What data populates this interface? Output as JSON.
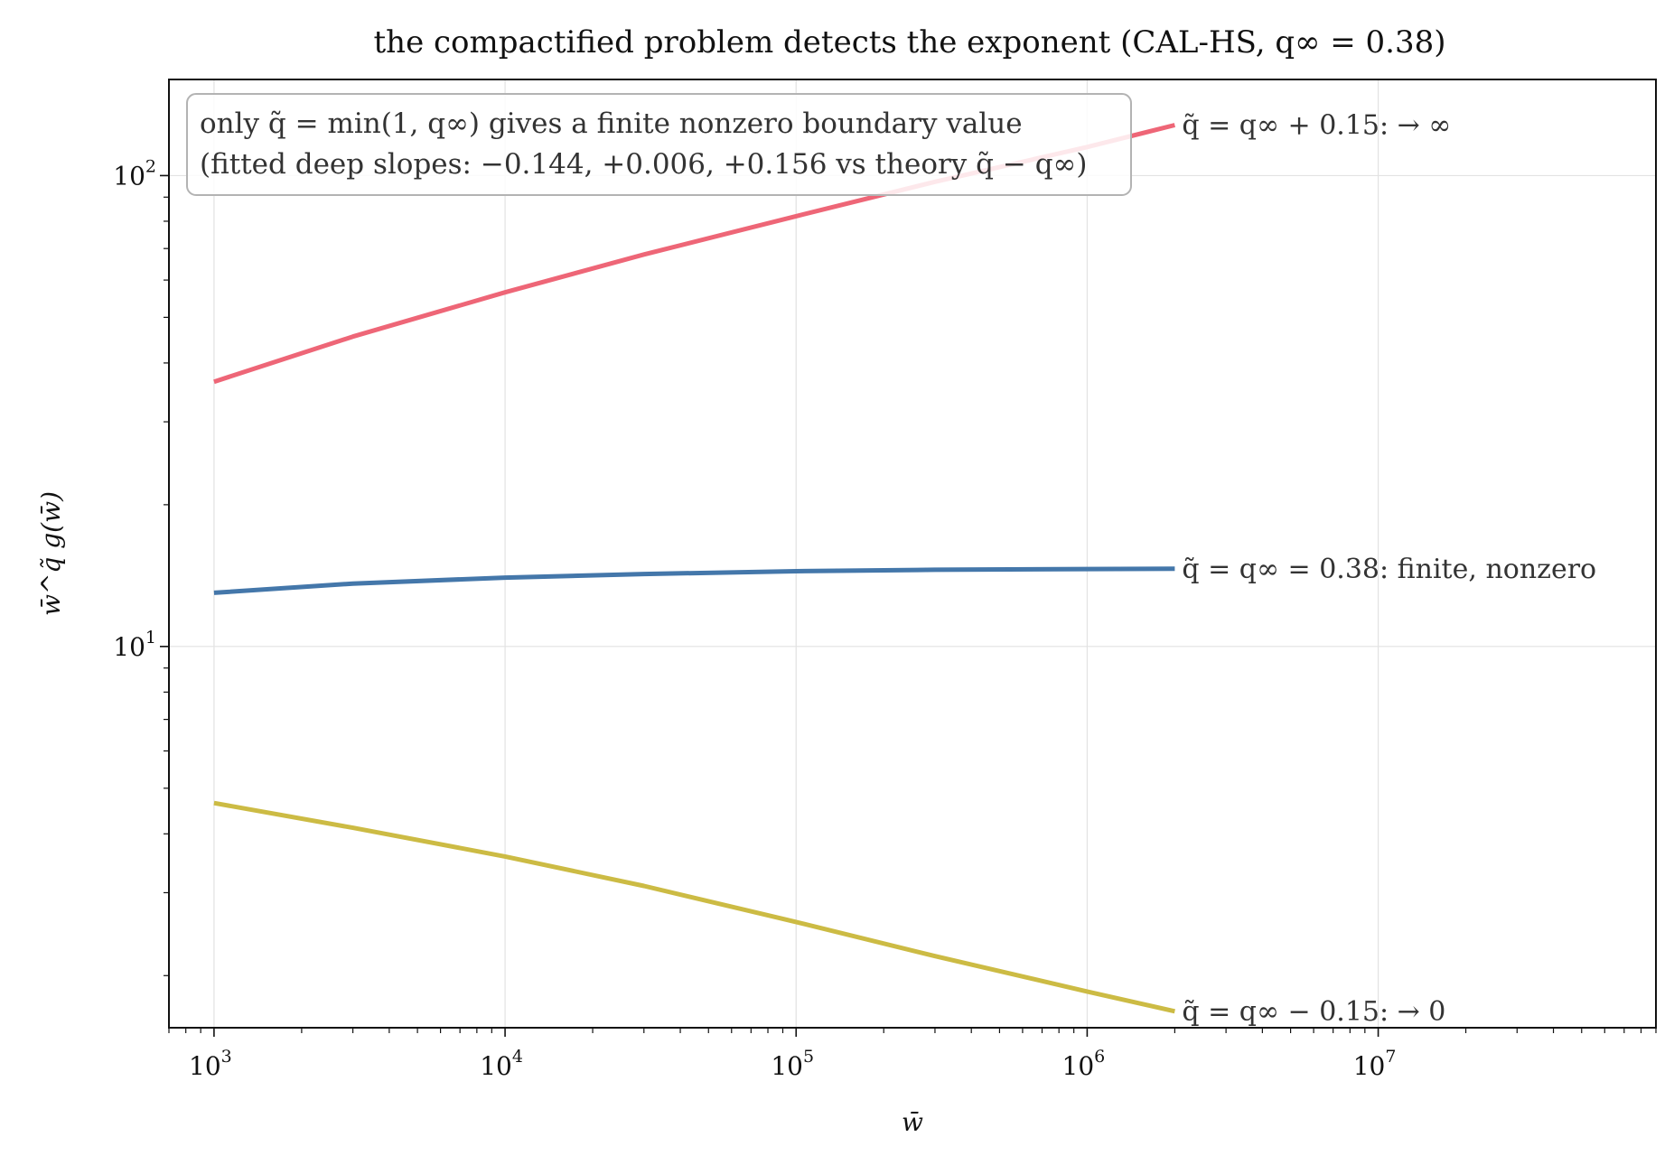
{
  "chart_data": {
    "type": "line",
    "title": "the compactified problem detects the exponent (CAL-HS, q∞ = 0.38)",
    "xlabel": "w̄",
    "ylabel": "w̄^q̃ g(w̄)",
    "xscale": "log",
    "yscale": "log",
    "xlim": [
      700,
      90000000
    ],
    "ylim": [
      1.55,
      160
    ],
    "x_ticks": [
      {
        "value": 1000,
        "label": "10",
        "exp": "3"
      },
      {
        "value": 10000,
        "label": "10",
        "exp": "4"
      },
      {
        "value": 100000,
        "label": "10",
        "exp": "5"
      },
      {
        "value": 1000000,
        "label": "10",
        "exp": "6"
      },
      {
        "value": 10000000,
        "label": "10",
        "exp": "7"
      }
    ],
    "y_ticks": [
      {
        "value": 10,
        "label": "10",
        "exp": "1"
      },
      {
        "value": 100,
        "label": "10",
        "exp": "2"
      }
    ],
    "grid": true,
    "annotation": {
      "line1": "only q̃ = min(1, q∞) gives a finite nonzero boundary value",
      "line2": "(fitted deep slopes: −0.144, +0.006, +0.156 vs theory q̃ − q∞)"
    },
    "series": [
      {
        "label": "q̃ = q∞ + 0.15:   → ∞",
        "color": "#ee6677",
        "x": [
          1000,
          3000,
          10000,
          30000,
          100000,
          300000,
          1000000,
          2000000
        ],
        "y": [
          36.5,
          45.5,
          56.5,
          68,
          82,
          97,
          115,
          128
        ]
      },
      {
        "label": "q̃ = q∞ = 0.38:  finite, nonzero",
        "color": "#4477aa",
        "x": [
          1000,
          3000,
          10000,
          30000,
          100000,
          300000,
          1000000,
          2000000
        ],
        "y": [
          13.0,
          13.6,
          14.0,
          14.25,
          14.45,
          14.55,
          14.6,
          14.62
        ]
      },
      {
        "label": "q̃ = q∞ − 0.15:   → 0",
        "color": "#ccbb44",
        "x": [
          1000,
          3000,
          10000,
          30000,
          100000,
          300000,
          1000000,
          2000000
        ],
        "y": [
          4.65,
          4.12,
          3.58,
          3.1,
          2.6,
          2.2,
          1.85,
          1.68
        ]
      }
    ]
  }
}
